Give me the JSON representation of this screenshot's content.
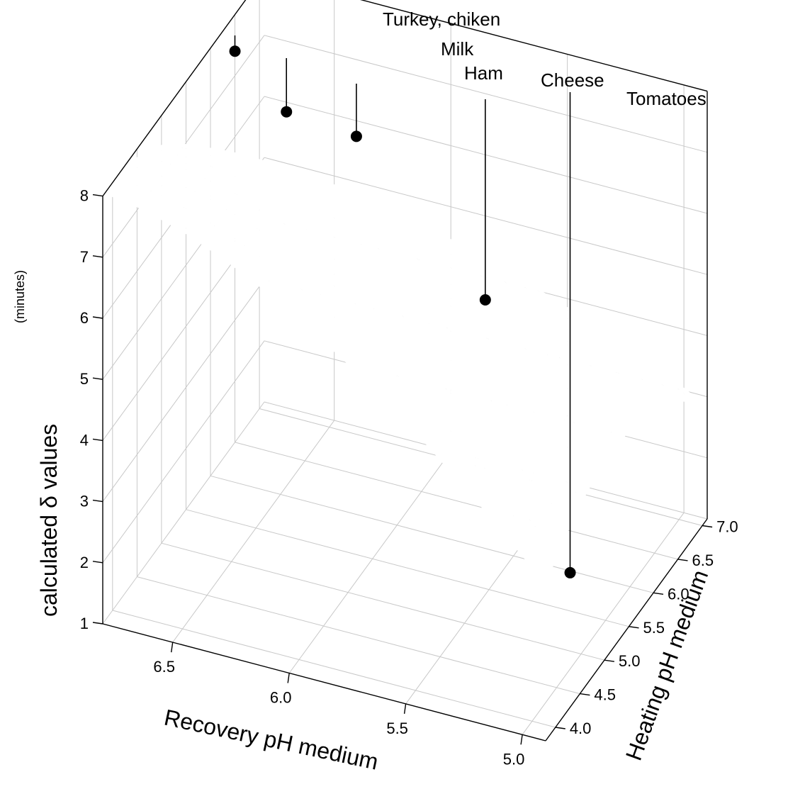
{
  "chart_data": {
    "type": "surface",
    "zlabel": "calculated δ  values",
    "zunit": "(minutes)",
    "xlabel": "Recovery pH medium",
    "ylabel": "Heating pH medium",
    "zlim": [
      1,
      8
    ],
    "x_ticks": [
      "5.0",
      "5.5",
      "6.0",
      "6.5"
    ],
    "y_ticks": [
      "4.0",
      "4.5",
      "5.0",
      "5.5",
      "6.0",
      "6.5",
      "7.0"
    ],
    "z_ticks": [
      "1",
      "2",
      "3",
      "4",
      "5",
      "6",
      "7",
      "8"
    ],
    "grid": true,
    "foods": [
      {
        "label": "Turkey, chiken",
        "recovery_pH": 6.8,
        "heating_pH": 6.5,
        "delta": 7.4
      },
      {
        "label": "Milk",
        "recovery_pH": 6.6,
        "heating_pH": 6.6,
        "delta": 6.5
      },
      {
        "label": "Ham",
        "recovery_pH": 6.3,
        "heating_pH": 6.6,
        "delta": 6.4
      },
      {
        "label": "Cheese",
        "recovery_pH": 5.6,
        "heating_pH": 5.9,
        "delta": 5.2
      },
      {
        "label": "Tomatoes",
        "recovery_pH": 4.9,
        "heating_pH": 4.3,
        "delta": 3.2
      }
    ]
  }
}
